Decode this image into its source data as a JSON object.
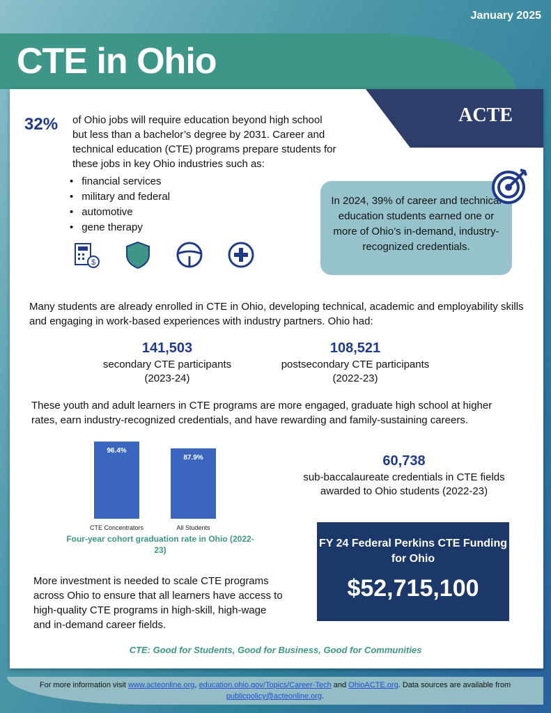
{
  "header": {
    "date": "January 2025",
    "title": "CTE in Ohio",
    "logo_text": "ACTE"
  },
  "intro": {
    "percent": "32%",
    "text": "of Ohio jobs will require education beyond high school but less than a bachelor’s degree by 2031. Career and technical education (CTE) programs prepare students for these jobs in key Ohio industries such as:",
    "industries": [
      "financial services",
      "military and federal",
      "automotive",
      "gene therapy"
    ],
    "icons": [
      "calculator-dollar-icon",
      "shield-icon",
      "steering-wheel-icon",
      "medical-cross-icon"
    ]
  },
  "credentials_box": {
    "text": "In 2024, 39% of career and technical education students earned one or more of Ohio’s in-demand, industry-recognized credentials.",
    "icon": "target-icon"
  },
  "enrollment_text": "Many students are already enrolled in CTE in Ohio, developing technical, academic and employability skills and engaging in work-based experiences with industry partners. Ohio had:",
  "stats": [
    {
      "value": "141,503",
      "label": "secondary CTE participants",
      "period": "(2023-24)"
    },
    {
      "value": "108,521",
      "label": "postsecondary CTE participants",
      "period": "(2022-23)"
    },
    {
      "value": "60,738",
      "label": "sub-baccalaureate credentials in CTE fields awarded to Ohio students (2022-23)"
    }
  ],
  "outcomes_text": "These youth and adult learners in CTE programs are more engaged, graduate high school at higher rates, earn industry-recognized credentials, and have rewarding and family-sustaining careers.",
  "chart_data": {
    "type": "bar",
    "categories": [
      "CTE Concentrators",
      "All Students"
    ],
    "values": [
      96.4,
      87.9
    ],
    "data_labels": [
      "96.4%",
      "87.9%"
    ],
    "title": "Four-year cohort graduation rate in Ohio (2022-23)",
    "ylim": [
      0,
      100
    ],
    "grid": false,
    "color": "#3a66c0"
  },
  "investment_text": "More investment is needed to scale CTE programs across Ohio to ensure that all learners have access to high-quality CTE programs in high-skill, high-wage and in-demand career fields.",
  "funding": {
    "title": "FY 24 Federal Perkins CTE Funding for Ohio",
    "value": "$52,715,100"
  },
  "tagline": "CTE: Good for Students, Good for Business, Good for Communities",
  "footer": {
    "t1": "For more information visit ",
    "l1": "www.acteonline.org",
    "t2": ", ",
    "l2": "education.ohio.gov/Topics/Career-Tech",
    "t3": " and ",
    "l3": "OhioACTE.org",
    "t4": ". Data sources are available from ",
    "l4": "publicpolicy@acteonline.org",
    "t5": "."
  },
  "colors": {
    "navy": "#1f3a8a",
    "teal": "#3d9688",
    "box": "#96c2cc",
    "fund_bg": "#1b3868"
  }
}
